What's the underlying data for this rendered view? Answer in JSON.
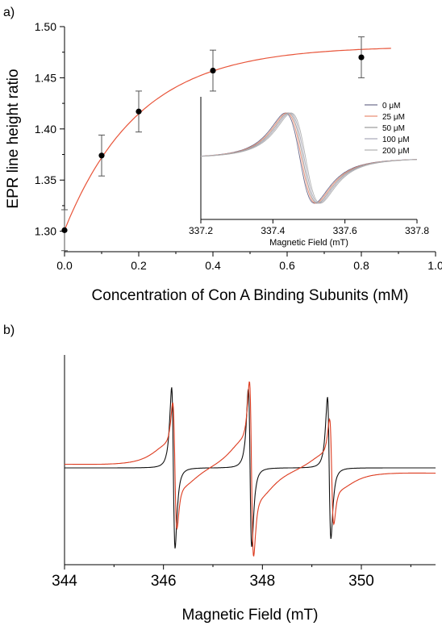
{
  "chart_data": [
    {
      "panel": "a)",
      "type": "scatter",
      "xlabel": "Concentration of Con A Binding Subunits (mM)",
      "ylabel": "EPR line height ratio",
      "xlim": [
        0,
        1.0
      ],
      "ylim": [
        1.28,
        1.5
      ],
      "x_ticks": [
        "0.0",
        "0.2",
        "0.4",
        "0.6",
        "0.8",
        "1.0"
      ],
      "y_ticks": [
        "1.30",
        "1.35",
        "1.40",
        "1.45",
        "1.50"
      ],
      "x_tick_values": [
        0,
        0.2,
        0.4,
        0.6,
        0.8,
        1.0
      ],
      "y_tick_values": [
        1.3,
        1.35,
        1.4,
        1.45,
        1.5
      ],
      "points": [
        {
          "x": 0.0,
          "y": 1.301,
          "err": 0.02
        },
        {
          "x": 0.1,
          "y": 1.374,
          "err": 0.02
        },
        {
          "x": 0.2,
          "y": 1.417,
          "err": 0.02
        },
        {
          "x": 0.4,
          "y": 1.457,
          "err": 0.02
        },
        {
          "x": 0.8,
          "y": 1.47,
          "err": 0.02
        }
      ],
      "fit": {
        "y0": 1.301,
        "amplitude": 0.18,
        "k": 5.0,
        "x_max": 0.88,
        "color": "#e8553a"
      },
      "grid": false
    },
    {
      "panel": "inset",
      "type": "line",
      "xlabel": "Magnetic Field (mT)",
      "xlim": [
        337.2,
        337.8
      ],
      "x_ticks": [
        "337.2",
        "337.4",
        "337.6",
        "337.8"
      ],
      "x_tick_values": [
        337.2,
        337.4,
        337.6,
        337.8
      ],
      "legend_position": "top-right",
      "series": [
        {
          "name": "0 μM",
          "color": "#6a6a8a",
          "shift": 0.0
        },
        {
          "name": "25 μM",
          "color": "#e88a70",
          "shift": 0.004
        },
        {
          "name": "50 μM",
          "color": "#999999",
          "shift": 0.008
        },
        {
          "name": "100 μM",
          "color": "#a8a8b8",
          "shift": 0.012
        },
        {
          "name": "200 μM",
          "color": "#b0b0b0",
          "shift": 0.016
        }
      ]
    },
    {
      "panel": "b)",
      "type": "line",
      "xlabel": "Magnetic Field (mT)",
      "xlim": [
        344,
        351.5
      ],
      "x_ticks": [
        "344",
        "346",
        "348",
        "350"
      ],
      "x_tick_values": [
        344,
        346,
        348,
        350
      ],
      "series": [
        {
          "name": "",
          "color": "#111111",
          "lines": [
            346.2,
            347.75,
            349.35
          ],
          "amps": [
            1.0,
            0.98,
            0.88
          ],
          "width": 0.06,
          "broad": 0.0
        },
        {
          "name": "",
          "color": "#dd3b1f",
          "lines": [
            346.23,
            347.78,
            349.4
          ],
          "amps": [
            0.72,
            1.0,
            0.6
          ],
          "width": 0.07,
          "broad": 0.32
        }
      ]
    }
  ]
}
